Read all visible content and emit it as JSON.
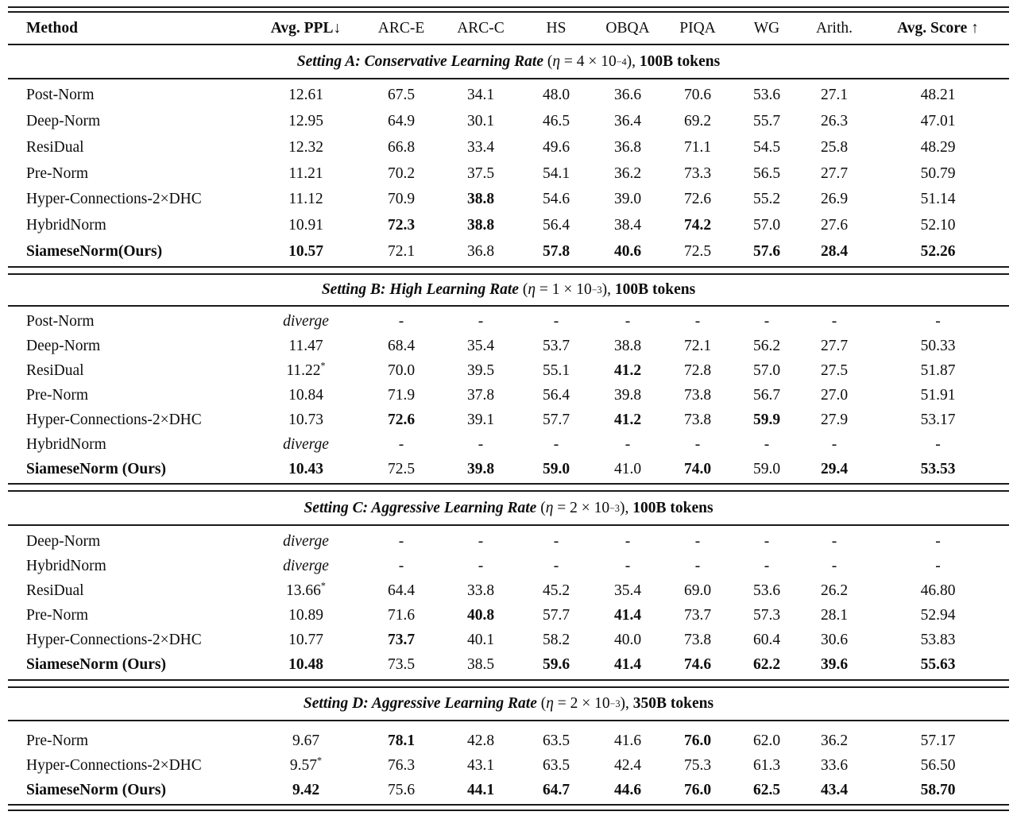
{
  "table": {
    "columns": [
      {
        "label": "Method",
        "bold": true
      },
      {
        "label": "Avg. PPL↓",
        "bold": true
      },
      {
        "label": "ARC-E",
        "bold": false
      },
      {
        "label": "ARC-C",
        "bold": false
      },
      {
        "label": "HS",
        "bold": false
      },
      {
        "label": "OBQA",
        "bold": false
      },
      {
        "label": "PIQA",
        "bold": false
      },
      {
        "label": "WG",
        "bold": false
      },
      {
        "label": "Arith.",
        "bold": false
      },
      {
        "label": "Avg. Score ↑",
        "bold": true
      }
    ],
    "sections": [
      {
        "id": "a",
        "title": {
          "label": "Setting A: Conservative Learning Rate",
          "open": " (",
          "eta": "η",
          "mid": " = 4 × 10",
          "exp": "−4",
          "close": "), ",
          "tokens": "100B tokens"
        },
        "rows": [
          {
            "method": {
              "t": "Post-Norm"
            },
            "values": [
              {
                "t": "12.61"
              },
              {
                "t": "67.5"
              },
              {
                "t": "34.1"
              },
              {
                "t": "48.0"
              },
              {
                "t": "36.6"
              },
              {
                "t": "70.6"
              },
              {
                "t": "53.6"
              },
              {
                "t": "27.1"
              },
              {
                "t": "48.21"
              }
            ]
          },
          {
            "method": {
              "t": "Deep-Norm"
            },
            "values": [
              {
                "t": "12.95"
              },
              {
                "t": "64.9"
              },
              {
                "t": "30.1"
              },
              {
                "t": "46.5"
              },
              {
                "t": "36.4"
              },
              {
                "t": "69.2"
              },
              {
                "t": "55.7"
              },
              {
                "t": "26.3"
              },
              {
                "t": "47.01"
              }
            ]
          },
          {
            "method": {
              "t": "ResiDual"
            },
            "values": [
              {
                "t": "12.32"
              },
              {
                "t": "66.8"
              },
              {
                "t": "33.4"
              },
              {
                "t": "49.6"
              },
              {
                "t": "36.8"
              },
              {
                "t": "71.1"
              },
              {
                "t": "54.5"
              },
              {
                "t": "25.8"
              },
              {
                "t": "48.29"
              }
            ]
          },
          {
            "method": {
              "t": "Pre-Norm"
            },
            "values": [
              {
                "t": "11.21"
              },
              {
                "t": "70.2"
              },
              {
                "t": "37.5"
              },
              {
                "t": "54.1"
              },
              {
                "t": "36.2"
              },
              {
                "t": "73.3"
              },
              {
                "t": "56.5"
              },
              {
                "t": "27.7"
              },
              {
                "t": "50.79"
              }
            ]
          },
          {
            "method": {
              "t": "Hyper-Connections-2×DHC"
            },
            "values": [
              {
                "t": "11.12"
              },
              {
                "t": "70.9"
              },
              {
                "t": "38.8",
                "b": true
              },
              {
                "t": "54.6"
              },
              {
                "t": "39.0"
              },
              {
                "t": "72.6"
              },
              {
                "t": "55.2"
              },
              {
                "t": "26.9"
              },
              {
                "t": "51.14"
              }
            ]
          },
          {
            "method": {
              "t": "HybridNorm"
            },
            "values": [
              {
                "t": "10.91"
              },
              {
                "t": "72.3",
                "b": true
              },
              {
                "t": "38.8",
                "b": true
              },
              {
                "t": "56.4"
              },
              {
                "t": "38.4"
              },
              {
                "t": "74.2",
                "b": true
              },
              {
                "t": "57.0"
              },
              {
                "t": "27.6"
              },
              {
                "t": "52.10"
              }
            ]
          },
          {
            "method": {
              "t": "SiameseNorm(Ours)",
              "b": true
            },
            "values": [
              {
                "t": "10.57",
                "b": true
              },
              {
                "t": "72.1"
              },
              {
                "t": "36.8"
              },
              {
                "t": "57.8",
                "b": true
              },
              {
                "t": "40.6",
                "b": true
              },
              {
                "t": "72.5"
              },
              {
                "t": "57.6",
                "b": true
              },
              {
                "t": "28.4",
                "b": true
              },
              {
                "t": "52.26",
                "b": true
              }
            ]
          }
        ]
      },
      {
        "id": "b",
        "title": {
          "label": "Setting B: High Learning Rate",
          "open": " (",
          "eta": "η",
          "mid": " = 1 × 10",
          "exp": "−3",
          "close": "), ",
          "tokens": "100B tokens"
        },
        "rows": [
          {
            "method": {
              "t": "Post-Norm"
            },
            "values": [
              {
                "t": "diverge",
                "i": true
              },
              {
                "t": "-"
              },
              {
                "t": "-"
              },
              {
                "t": "-"
              },
              {
                "t": "-"
              },
              {
                "t": "-"
              },
              {
                "t": "-"
              },
              {
                "t": "-"
              },
              {
                "t": "-"
              }
            ]
          },
          {
            "method": {
              "t": "Deep-Norm"
            },
            "values": [
              {
                "t": "11.47"
              },
              {
                "t": "68.4"
              },
              {
                "t": "35.4"
              },
              {
                "t": "53.7"
              },
              {
                "t": "38.8"
              },
              {
                "t": "72.1"
              },
              {
                "t": "56.2"
              },
              {
                "t": "27.7"
              },
              {
                "t": "50.33"
              }
            ]
          },
          {
            "method": {
              "t": "ResiDual"
            },
            "values": [
              {
                "t": "11.22",
                "sup": "*"
              },
              {
                "t": "70.0"
              },
              {
                "t": "39.5"
              },
              {
                "t": "55.1"
              },
              {
                "t": "41.2",
                "b": true
              },
              {
                "t": "72.8"
              },
              {
                "t": "57.0"
              },
              {
                "t": "27.5"
              },
              {
                "t": "51.87"
              }
            ]
          },
          {
            "method": {
              "t": "Pre-Norm"
            },
            "values": [
              {
                "t": "10.84"
              },
              {
                "t": "71.9"
              },
              {
                "t": "37.8"
              },
              {
                "t": "56.4"
              },
              {
                "t": "39.8"
              },
              {
                "t": "73.8"
              },
              {
                "t": "56.7"
              },
              {
                "t": "27.0"
              },
              {
                "t": "51.91"
              }
            ]
          },
          {
            "method": {
              "t": "Hyper-Connections-2×DHC"
            },
            "values": [
              {
                "t": "10.73"
              },
              {
                "t": "72.6",
                "b": true
              },
              {
                "t": "39.1"
              },
              {
                "t": "57.7"
              },
              {
                "t": "41.2",
                "b": true
              },
              {
                "t": "73.8"
              },
              {
                "t": "59.9",
                "b": true
              },
              {
                "t": "27.9"
              },
              {
                "t": "53.17"
              }
            ]
          },
          {
            "method": {
              "t": "HybridNorm"
            },
            "values": [
              {
                "t": "diverge",
                "i": true
              },
              {
                "t": "-"
              },
              {
                "t": "-"
              },
              {
                "t": "-"
              },
              {
                "t": "-"
              },
              {
                "t": "-"
              },
              {
                "t": "-"
              },
              {
                "t": "-"
              },
              {
                "t": "-"
              }
            ]
          },
          {
            "method": {
              "t": "SiameseNorm (Ours)",
              "b": true
            },
            "values": [
              {
                "t": "10.43",
                "b": true
              },
              {
                "t": "72.5"
              },
              {
                "t": "39.8",
                "b": true
              },
              {
                "t": "59.0",
                "b": true
              },
              {
                "t": "41.0"
              },
              {
                "t": "74.0",
                "b": true
              },
              {
                "t": "59.0"
              },
              {
                "t": "29.4",
                "b": true
              },
              {
                "t": "53.53",
                "b": true
              }
            ]
          }
        ]
      },
      {
        "id": "c",
        "title": {
          "label": "Setting C: Aggressive Learning Rate",
          "open": " (",
          "eta": "η",
          "mid": " = 2 × 10",
          "exp": "−3",
          "close": "), ",
          "tokens": "100B tokens"
        },
        "rows": [
          {
            "method": {
              "t": "Deep-Norm"
            },
            "values": [
              {
                "t": "diverge",
                "i": true
              },
              {
                "t": "-"
              },
              {
                "t": "-"
              },
              {
                "t": "-"
              },
              {
                "t": "-"
              },
              {
                "t": "-"
              },
              {
                "t": "-"
              },
              {
                "t": "-"
              },
              {
                "t": "-"
              }
            ]
          },
          {
            "method": {
              "t": "HybridNorm"
            },
            "values": [
              {
                "t": "diverge",
                "i": true
              },
              {
                "t": "-"
              },
              {
                "t": "-"
              },
              {
                "t": "-"
              },
              {
                "t": "-"
              },
              {
                "t": "-"
              },
              {
                "t": "-"
              },
              {
                "t": "-"
              },
              {
                "t": "-"
              }
            ]
          },
          {
            "method": {
              "t": "ResiDual"
            },
            "values": [
              {
                "t": "13.66",
                "sup": "*"
              },
              {
                "t": "64.4"
              },
              {
                "t": "33.8"
              },
              {
                "t": "45.2"
              },
              {
                "t": "35.4"
              },
              {
                "t": "69.0"
              },
              {
                "t": "53.6"
              },
              {
                "t": "26.2"
              },
              {
                "t": "46.80"
              }
            ]
          },
          {
            "method": {
              "t": "Pre-Norm"
            },
            "values": [
              {
                "t": "10.89"
              },
              {
                "t": "71.6"
              },
              {
                "t": "40.8",
                "b": true
              },
              {
                "t": "57.7"
              },
              {
                "t": "41.4",
                "b": true
              },
              {
                "t": "73.7"
              },
              {
                "t": "57.3"
              },
              {
                "t": "28.1"
              },
              {
                "t": "52.94"
              }
            ]
          },
          {
            "method": {
              "t": "Hyper-Connections-2×DHC"
            },
            "values": [
              {
                "t": "10.77"
              },
              {
                "t": "73.7",
                "b": true
              },
              {
                "t": "40.1"
              },
              {
                "t": "58.2"
              },
              {
                "t": "40.0"
              },
              {
                "t": "73.8"
              },
              {
                "t": "60.4"
              },
              {
                "t": "30.6"
              },
              {
                "t": "53.83"
              }
            ]
          },
          {
            "method": {
              "t": "SiameseNorm (Ours)",
              "b": true
            },
            "values": [
              {
                "t": "10.48",
                "b": true
              },
              {
                "t": "73.5"
              },
              {
                "t": "38.5"
              },
              {
                "t": "59.6",
                "b": true
              },
              {
                "t": "41.4",
                "b": true
              },
              {
                "t": "74.6",
                "b": true
              },
              {
                "t": "62.2",
                "b": true
              },
              {
                "t": "39.6",
                "b": true
              },
              {
                "t": "55.63",
                "b": true
              }
            ]
          }
        ]
      },
      {
        "id": "d",
        "title": {
          "label": "Setting D: Aggressive Learning Rate",
          "open": " (",
          "eta": "η",
          "mid": " = 2 × 10",
          "exp": "−3",
          "close": "), ",
          "tokens": "350B tokens"
        },
        "rows": [
          {
            "method": {
              "t": "Pre-Norm"
            },
            "values": [
              {
                "t": "9.67"
              },
              {
                "t": "78.1",
                "b": true
              },
              {
                "t": "42.8"
              },
              {
                "t": "63.5"
              },
              {
                "t": "41.6"
              },
              {
                "t": "76.0",
                "b": true
              },
              {
                "t": "62.0"
              },
              {
                "t": "36.2"
              },
              {
                "t": "57.17"
              }
            ]
          },
          {
            "method": {
              "t": "Hyper-Connections-2×DHC"
            },
            "values": [
              {
                "t": "9.57",
                "sup": "*"
              },
              {
                "t": "76.3"
              },
              {
                "t": "43.1"
              },
              {
                "t": "63.5"
              },
              {
                "t": "42.4"
              },
              {
                "t": "75.3"
              },
              {
                "t": "61.3"
              },
              {
                "t": "33.6"
              },
              {
                "t": "56.50"
              }
            ]
          },
          {
            "method": {
              "t": "SiameseNorm (Ours)",
              "b": true
            },
            "values": [
              {
                "t": "9.42",
                "b": true
              },
              {
                "t": "75.6"
              },
              {
                "t": "44.1",
                "b": true
              },
              {
                "t": "64.7",
                "b": true
              },
              {
                "t": "44.6",
                "b": true
              },
              {
                "t": "76.0",
                "b": true
              },
              {
                "t": "62.5",
                "b": true
              },
              {
                "t": "43.4",
                "b": true
              },
              {
                "t": "58.70",
                "b": true
              }
            ]
          }
        ]
      }
    ]
  }
}
